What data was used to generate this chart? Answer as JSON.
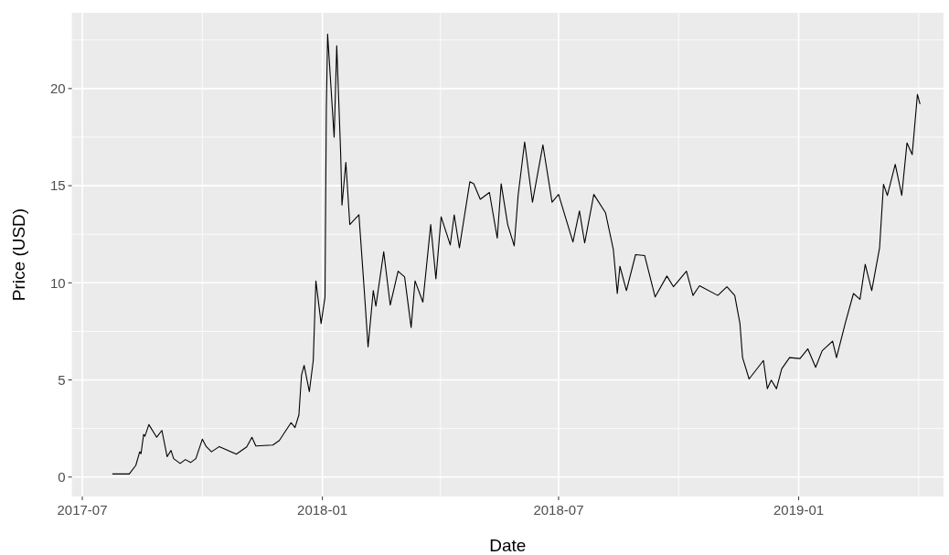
{
  "chart_data": {
    "type": "line",
    "xlabel": "Date",
    "ylabel": "Price (USD)",
    "xlim": [
      "2017-06-23",
      "2019-04-22"
    ],
    "ylim": [
      -1.0,
      23.9
    ],
    "xticks": [
      "2017-07",
      "2018-01",
      "2018-07",
      "2019-01"
    ],
    "yticks": [
      0,
      5,
      10,
      15,
      20
    ],
    "grid": true,
    "x": [
      "2017-07-24",
      "2017-08-06",
      "2017-08-11",
      "2017-08-14",
      "2017-08-15",
      "2017-08-17",
      "2017-08-18",
      "2017-08-21",
      "2017-08-27",
      "2017-08-31",
      "2017-09-04",
      "2017-09-07",
      "2017-09-09",
      "2017-09-14",
      "2017-09-18",
      "2017-09-22",
      "2017-09-26",
      "2017-10-01",
      "2017-10-04",
      "2017-10-08",
      "2017-10-14",
      "2017-10-27",
      "2017-11-04",
      "2017-11-08",
      "2017-11-11",
      "2017-11-24",
      "2017-11-29",
      "2017-12-08",
      "2017-12-11",
      "2017-12-14",
      "2017-12-16",
      "2017-12-18",
      "2017-12-22",
      "2017-12-25",
      "2017-12-27",
      "2017-12-31",
      "2018-01-03",
      "2018-01-04",
      "2018-01-05",
      "2018-01-10",
      "2018-01-12",
      "2018-01-15",
      "2018-01-16",
      "2018-01-19",
      "2018-01-22",
      "2018-01-29",
      "2018-02-02",
      "2018-02-05",
      "2018-02-09",
      "2018-02-11",
      "2018-02-17",
      "2018-02-22",
      "2018-02-28",
      "2018-03-05",
      "2018-03-10",
      "2018-03-13",
      "2018-03-19",
      "2018-03-25",
      "2018-03-29",
      "2018-04-02",
      "2018-04-09",
      "2018-04-12",
      "2018-04-16",
      "2018-04-24",
      "2018-04-27",
      "2018-05-02",
      "2018-05-09",
      "2018-05-15",
      "2018-05-18",
      "2018-05-23",
      "2018-05-28",
      "2018-05-31",
      "2018-06-05",
      "2018-06-11",
      "2018-06-19",
      "2018-06-26",
      "2018-07-01",
      "2018-07-12",
      "2018-07-17",
      "2018-07-21",
      "2018-07-28",
      "2018-08-06",
      "2018-08-12",
      "2018-08-15",
      "2018-08-17",
      "2018-08-22",
      "2018-08-29",
      "2018-09-05",
      "2018-09-13",
      "2018-09-22",
      "2018-09-27",
      "2018-10-07",
      "2018-10-12",
      "2018-10-17",
      "2018-10-31",
      "2018-11-07",
      "2018-11-13",
      "2018-11-17",
      "2018-11-19",
      "2018-11-24",
      "2018-12-05",
      "2018-12-08",
      "2018-12-11",
      "2018-12-15",
      "2018-12-19",
      "2018-12-25",
      "2019-01-02",
      "2019-01-08",
      "2019-01-14",
      "2019-01-19",
      "2019-01-27",
      "2019-01-30",
      "2019-02-06",
      "2019-02-12",
      "2019-02-17",
      "2019-02-21",
      "2019-02-26",
      "2019-03-04",
      "2019-03-07",
      "2019-03-10",
      "2019-03-16",
      "2019-03-21",
      "2019-03-25",
      "2019-03-29",
      "2019-04-02",
      "2019-04-04"
    ],
    "series": [
      {
        "color": "#000000",
        "values": [
          0.16,
          0.16,
          0.6,
          1.3,
          1.2,
          2.2,
          2.1,
          2.7,
          2.05,
          2.4,
          1.05,
          1.37,
          0.95,
          0.7,
          0.9,
          0.75,
          0.95,
          1.95,
          1.57,
          1.3,
          1.57,
          1.18,
          1.55,
          2.05,
          1.6,
          1.65,
          1.88,
          2.8,
          2.55,
          3.2,
          5.25,
          5.75,
          4.4,
          6.0,
          10.1,
          7.9,
          9.27,
          18.85,
          22.8,
          17.5,
          22.2,
          16.66,
          14.0,
          16.2,
          13.0,
          13.5,
          9.7,
          6.7,
          9.6,
          8.8,
          11.6,
          8.85,
          10.6,
          10.3,
          7.7,
          10.1,
          9.0,
          13.0,
          10.2,
          13.4,
          11.95,
          13.5,
          11.8,
          15.2,
          15.1,
          14.3,
          14.65,
          12.3,
          15.1,
          13.0,
          11.9,
          14.5,
          17.25,
          14.15,
          17.1,
          14.15,
          14.55,
          12.1,
          13.7,
          12.05,
          14.55,
          13.6,
          11.7,
          9.45,
          10.85,
          9.6,
          11.45,
          11.4,
          9.27,
          10.35,
          9.8,
          10.6,
          9.35,
          9.85,
          9.35,
          9.8,
          9.35,
          7.9,
          6.15,
          5.05,
          6.0,
          4.55,
          4.99,
          4.55,
          5.57,
          6.15,
          6.1,
          6.6,
          5.65,
          6.5,
          7.0,
          6.15,
          8.0,
          9.45,
          9.15,
          10.95,
          9.6,
          11.8,
          15.07,
          14.5,
          16.1,
          14.5,
          17.2,
          16.6,
          19.7,
          19.2
        ]
      }
    ]
  }
}
